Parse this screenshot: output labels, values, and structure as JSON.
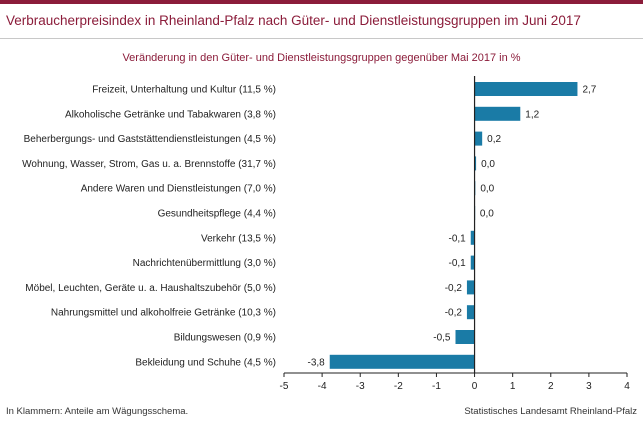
{
  "header": {
    "title": "Verbraucherpreisindex in Rheinland-Pfalz nach Güter- und Dienstleistungsgruppen im Juni 2017",
    "subtitle": "Veränderung in den Güter- und Dienstleistungsgruppen gegenüber Mai 2017 in %"
  },
  "footer": {
    "note": "In Klammern: Anteile am Wägungsschema.",
    "source": "Statistisches Landesamt Rheinland-Pfalz"
  },
  "colors": {
    "bar": "#1a7ba6",
    "accent": "#8b1c3a"
  },
  "chart_data": {
    "type": "bar",
    "orientation": "horizontal",
    "title": "Verbraucherpreisindex in Rheinland-Pfalz nach Güter- und Dienstleistungsgruppen im Juni 2017",
    "subtitle": "Veränderung in den Güter- und Dienstleistungsgruppen gegenüber Mai 2017 in %",
    "categories": [
      "Freizeit, Unterhaltung und Kultur (11,5 %)",
      "Alkoholische Getränke und Tabakwaren (3,8 %)",
      "Beherbergungs- und Gaststättendienstleistungen (4,5 %)",
      "Wohnung, Wasser, Strom, Gas u. a. Brennstoffe (31,7 %)",
      "Andere Waren und Dienstleistungen (7,0 %)",
      "Gesundheitspflege (4,4 %)",
      "Verkehr (13,5 %)",
      "Nachrichtenübermittlung (3,0 %)",
      "Möbel, Leuchten, Geräte u. a. Haushaltszubehör (5,0 %)",
      "Nahrungsmittel und alkoholfreie Getränke (10,3 %)",
      "Bildungswesen (0,9 %)",
      "Bekleidung und Schuhe (4,5 %)"
    ],
    "values": [
      2.7,
      1.2,
      0.2,
      0.04,
      0.02,
      0.01,
      -0.1,
      -0.1,
      -0.2,
      -0.2,
      -0.5,
      -3.8
    ],
    "value_labels": [
      "2,7",
      "1,2",
      "0,2",
      "0,0",
      "0,0",
      "0,0",
      "-0,1",
      "-0,1",
      "-0,2",
      "-0,2",
      "-0,5",
      "-3,8"
    ],
    "xlim": [
      -5,
      4
    ],
    "xticks": [
      -5,
      -4,
      -3,
      -2,
      -1,
      0,
      1,
      2,
      3,
      4
    ],
    "xtick_labels": [
      "-5",
      "-4",
      "-3",
      "-2",
      "-1",
      "0",
      "1",
      "2",
      "3",
      "4"
    ],
    "grid": false,
    "legend": "none"
  }
}
